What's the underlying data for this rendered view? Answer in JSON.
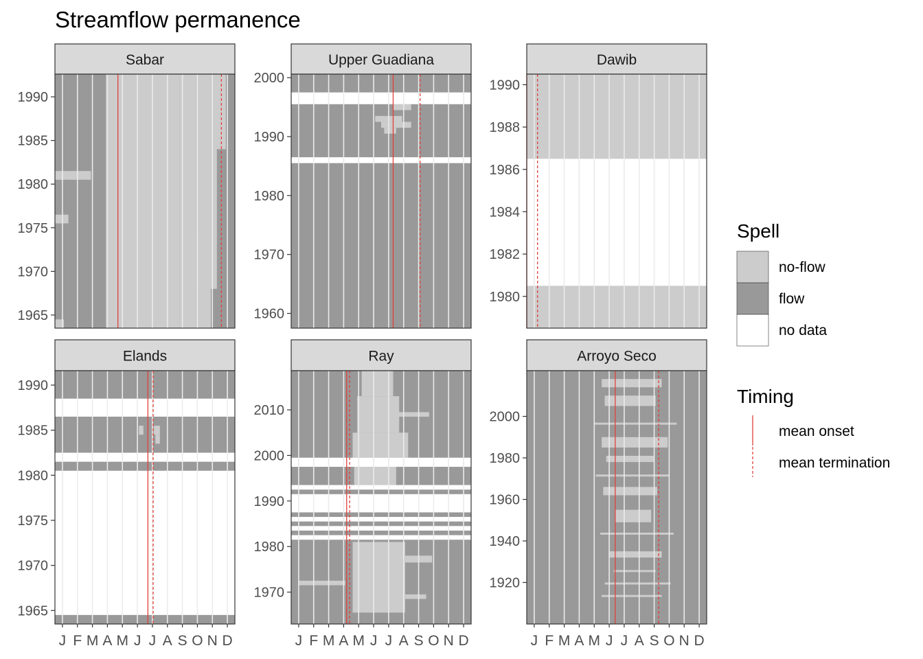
{
  "chart_data": {
    "type": "heatmap",
    "title": "Streamflow permanence",
    "x_tick_labels": [
      "J",
      "F",
      "M",
      "A",
      "M",
      "J",
      "J",
      "A",
      "S",
      "O",
      "N",
      "D"
    ],
    "colors": {
      "no-flow": "#cccccc",
      "flow": "#999999",
      "no data": "#ffffff",
      "panel_border": "#333333",
      "strip_fill": "#d9d9d9",
      "onset_line": "#e0403a",
      "termination_line": "#e0403a"
    },
    "legend": {
      "position": "right",
      "spell_title": "Spell",
      "spell_items": [
        {
          "label": "no-flow",
          "key": "no-flow"
        },
        {
          "label": "flow",
          "key": "flow"
        },
        {
          "label": "no data",
          "key": "no data"
        }
      ],
      "timing_title": "Timing",
      "timing_items": [
        {
          "label": "mean onset",
          "style": "solid"
        },
        {
          "label": "mean termination",
          "style": "dashed"
        }
      ]
    },
    "panels": [
      {
        "name": "Sabar",
        "ylim": [
          1963.5,
          1992.6
        ],
        "yticks": [
          1965,
          1970,
          1975,
          1980,
          1985,
          1990
        ],
        "background": "flow",
        "mean_onset_month": 4.2,
        "mean_termination_month": 11.1,
        "gaps": [],
        "noflow_rects": [
          {
            "y0": 1963.5,
            "y1": 1992.6,
            "m0": 4.2,
            "m1": 8.3
          },
          {
            "y0": 1963.5,
            "y1": 1992.6,
            "m0": 3.4,
            "m1": 4.2
          },
          {
            "y0": 1963.5,
            "y1": 1992.6,
            "m0": 8.3,
            "m1": 9.4
          },
          {
            "y0": 1963.5,
            "y1": 1975.0,
            "m0": 9.4,
            "m1": 10.4
          },
          {
            "y0": 1968.0,
            "y1": 1985.0,
            "m0": 9.4,
            "m1": 10.8
          },
          {
            "y0": 1984.0,
            "y1": 1992.6,
            "m0": 9.4,
            "m1": 11.4
          },
          {
            "y0": 1980.5,
            "y1": 1981.5,
            "m0": 0.0,
            "m1": 2.4
          },
          {
            "y0": 1975.5,
            "y1": 1976.5,
            "m0": 0.0,
            "m1": 0.9
          },
          {
            "y0": 1963.5,
            "y1": 1964.5,
            "m0": 0.0,
            "m1": 0.6
          }
        ]
      },
      {
        "name": "Upper Guadiana",
        "ylim": [
          1957.5,
          2000.6
        ],
        "yticks": [
          1960,
          1970,
          1980,
          1990,
          2000
        ],
        "background": "flow",
        "mean_onset_month": 6.8,
        "mean_termination_month": 8.6,
        "gaps": [
          {
            "y0": 1985.5,
            "y1": 1986.5
          },
          {
            "y0": 1995.5,
            "y1": 1997.5
          }
        ],
        "noflow_rects": [
          {
            "y0": 1991.5,
            "y1": 1992.5,
            "m0": 6.0,
            "m1": 8.0
          },
          {
            "y0": 1992.5,
            "y1": 1993.5,
            "m0": 5.6,
            "m1": 7.4
          },
          {
            "y0": 1990.5,
            "y1": 1991.5,
            "m0": 6.2,
            "m1": 7.0
          },
          {
            "y0": 1994.5,
            "y1": 1995.5,
            "m0": 6.8,
            "m1": 8.0
          }
        ]
      },
      {
        "name": "Dawib",
        "ylim": [
          1978.5,
          1990.5
        ],
        "yticks": [
          1980,
          1982,
          1984,
          1986,
          1988,
          1990
        ],
        "background": "no-flow",
        "mean_onset_month": 0.0,
        "mean_termination_month": 0.72,
        "gaps": [
          {
            "y0": 1980.5,
            "y1": 1986.5
          }
        ],
        "noflow_rects": []
      },
      {
        "name": "Elands",
        "ylim": [
          1963.5,
          1991.6
        ],
        "yticks": [
          1965,
          1970,
          1975,
          1980,
          1985,
          1990
        ],
        "background": "flow",
        "mean_onset_month": 6.2,
        "mean_termination_month": 6.55,
        "gaps": [
          {
            "y0": 1964.5,
            "y1": 1980.5
          },
          {
            "y0": 1981.5,
            "y1": 1982.5
          },
          {
            "y0": 1986.5,
            "y1": 1988.5
          }
        ],
        "noflow_rects": [
          {
            "y0": 1984.5,
            "y1": 1985.5,
            "m0": 5.6,
            "m1": 5.9
          },
          {
            "y0": 1984.5,
            "y1": 1985.5,
            "m0": 6.6,
            "m1": 7.0
          },
          {
            "y0": 1983.5,
            "y1": 1984.5,
            "m0": 6.7,
            "m1": 7.0
          }
        ]
      },
      {
        "name": "Ray",
        "ylim": [
          1963.0,
          2018.6
        ],
        "yticks": [
          1970,
          1980,
          1990,
          2000,
          2010
        ],
        "background": "flow",
        "mean_onset_month": 3.7,
        "mean_termination_month": 3.9,
        "gaps": [
          {
            "y0": 1981.5,
            "y1": 1982.5
          },
          {
            "y0": 1983.5,
            "y1": 1984.5
          },
          {
            "y0": 1985.5,
            "y1": 1986.5
          },
          {
            "y0": 1987.5,
            "y1": 1991.5
          },
          {
            "y0": 1992.5,
            "y1": 1993.5
          },
          {
            "y0": 1997.5,
            "y1": 1999.5
          }
        ],
        "noflow_rects": [
          {
            "y0": 1965.5,
            "y1": 1981.0,
            "m0": 4.1,
            "m1": 7.6
          },
          {
            "y0": 1993.5,
            "y1": 1997.5,
            "m0": 4.2,
            "m1": 7.0
          },
          {
            "y0": 1999.5,
            "y1": 2005.0,
            "m0": 4.1,
            "m1": 7.8
          },
          {
            "y0": 2005.0,
            "y1": 2013.0,
            "m0": 4.4,
            "m1": 7.2
          },
          {
            "y0": 2013.0,
            "y1": 2018.6,
            "m0": 4.7,
            "m1": 6.8
          },
          {
            "y0": 1976.5,
            "y1": 1978.0,
            "m0": 7.6,
            "m1": 9.4
          },
          {
            "y0": 1971.5,
            "y1": 1972.5,
            "m0": 0.5,
            "m1": 3.6
          },
          {
            "y0": 1968.5,
            "y1": 1969.5,
            "m0": 7.6,
            "m1": 9.0
          },
          {
            "y0": 2008.5,
            "y1": 2009.5,
            "m0": 7.0,
            "m1": 9.2
          }
        ]
      },
      {
        "name": "Arroyo Seco",
        "ylim": [
          1900.0,
          2022.0
        ],
        "yticks": [
          1920,
          1940,
          1960,
          1980,
          2000
        ],
        "background": "flow",
        "mean_onset_month": 5.9,
        "mean_termination_month": 8.8,
        "gaps": [],
        "noflow_rects": [
          {
            "y0": 2014.0,
            "y1": 2018.0,
            "m0": 5.0,
            "m1": 9.0
          },
          {
            "y0": 2005.0,
            "y1": 2010.0,
            "m0": 5.2,
            "m1": 8.6
          },
          {
            "y0": 1985.0,
            "y1": 1990.0,
            "m0": 5.0,
            "m1": 9.4
          },
          {
            "y0": 1978.0,
            "y1": 1981.0,
            "m0": 5.3,
            "m1": 8.5
          },
          {
            "y0": 1962.0,
            "y1": 1966.0,
            "m0": 5.1,
            "m1": 8.7
          },
          {
            "y0": 1949.0,
            "y1": 1955.0,
            "m0": 5.9,
            "m1": 8.3
          },
          {
            "y0": 1932.0,
            "y1": 1935.0,
            "m0": 5.5,
            "m1": 9.0
          },
          {
            "y0": 1925.0,
            "y1": 1926.0,
            "m0": 5.8,
            "m1": 8.6
          },
          {
            "y0": 1913.0,
            "y1": 1914.0,
            "m0": 5.0,
            "m1": 9.0
          },
          {
            "y0": 1996.0,
            "y1": 1997.0,
            "m0": 4.5,
            "m1": 10.0
          },
          {
            "y0": 1971.0,
            "y1": 1972.0,
            "m0": 4.6,
            "m1": 9.5
          },
          {
            "y0": 1943.0,
            "y1": 1944.0,
            "m0": 4.9,
            "m1": 9.8
          },
          {
            "y0": 1919.0,
            "y1": 1920.0,
            "m0": 5.2,
            "m1": 9.6
          }
        ]
      }
    ]
  }
}
